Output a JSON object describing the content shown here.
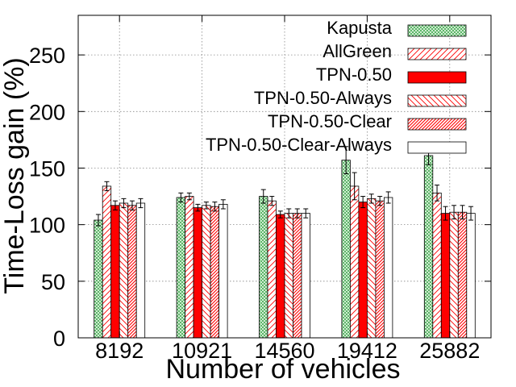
{
  "chart_data": {
    "type": "bar",
    "xlabel": "Number of vehicles",
    "ylabel": "Time-Loss gain (%)",
    "ylim": [
      0,
      285
    ],
    "yticks": [
      0,
      50,
      100,
      150,
      200,
      250
    ],
    "grid": true,
    "legend_position": "top-right",
    "categories": [
      "8192",
      "10921",
      "14560",
      "19412",
      "25882"
    ],
    "series": [
      {
        "name": "Kapusta",
        "pattern": "light-green-crosshatch",
        "values": [
          104,
          124,
          125,
          157,
          161
        ],
        "errors": [
          5,
          4,
          6,
          12,
          8
        ]
      },
      {
        "name": "AllGreen",
        "pattern": "red-diagonal-sparse",
        "values": [
          134,
          125,
          121,
          134,
          128
        ],
        "errors": [
          4,
          3,
          4,
          12,
          7
        ]
      },
      {
        "name": "TPN-0.50",
        "pattern": "solid-red",
        "values": [
          117,
          115,
          109,
          120,
          110
        ],
        "errors": [
          4,
          3,
          3,
          5,
          6
        ]
      },
      {
        "name": "TPN-0.50-Always",
        "pattern": "red-diagonal-sparse-alt",
        "values": [
          119,
          117,
          110,
          123,
          111
        ],
        "errors": [
          4,
          3,
          4,
          4,
          6
        ]
      },
      {
        "name": "TPN-0.50-Clear",
        "pattern": "red-diagonal-dense",
        "values": [
          117,
          116,
          110,
          121,
          111
        ],
        "errors": [
          4,
          4,
          4,
          4,
          6
        ]
      },
      {
        "name": "TPN-0.50-Clear-Always",
        "pattern": "white",
        "values": [
          119,
          118,
          110,
          124,
          110
        ],
        "errors": [
          4,
          4,
          4,
          5,
          6
        ]
      }
    ],
    "colors": {
      "red": "#ff0000",
      "green_hatch": "#3cb043",
      "grid": "#888888"
    }
  }
}
